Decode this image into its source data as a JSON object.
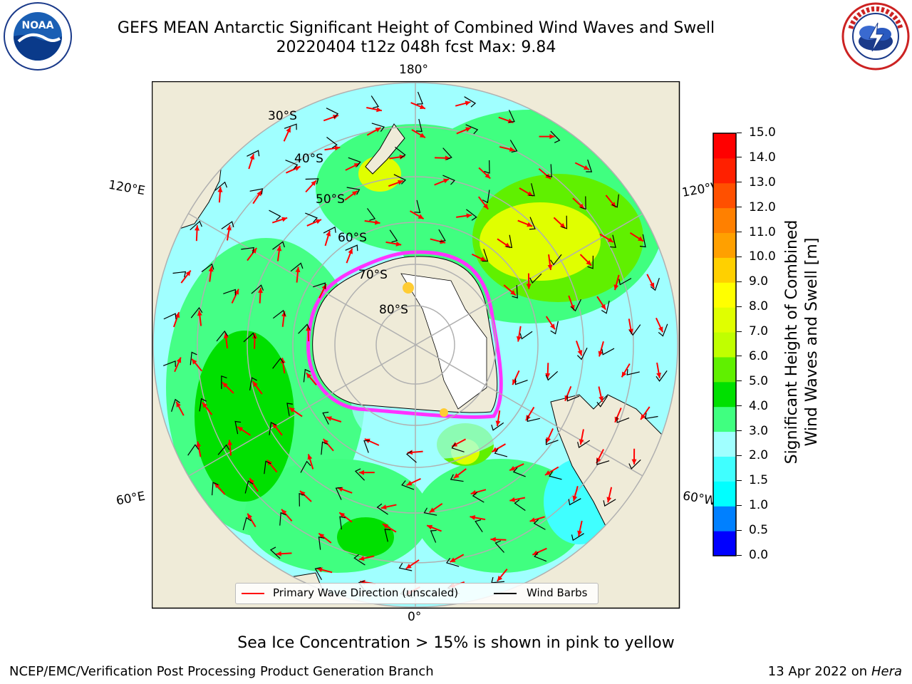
{
  "header": {
    "title_line1": "GEFS MEAN Antarctic Significant Height of Combined Wind Waves and Swell",
    "title_line2": "20220404 t12z 048h fcst   Max: 9.84"
  },
  "logos": {
    "left": {
      "name": "NOAA",
      "text": "NOAA",
      "ring_text": "NATIONAL OCEANIC AND ATMOSPHERIC ADMINISTRATION · U.S. DEPARTMENT OF COMMERCE"
    },
    "right": {
      "name": "National Weather Service",
      "ring_text": "NATIONAL WEATHER SERVICE"
    }
  },
  "map": {
    "projection": "south-polar-stereographic",
    "longitude_labels": {
      "top": "180°",
      "bottom": "0°",
      "left_upper": "120°E",
      "left_lower": "60°E",
      "right_upper": "120°W",
      "right_lower": "60°W"
    },
    "latitude_labels": [
      "30°S",
      "40°S",
      "50°S",
      "60°S",
      "70°S",
      "80°S"
    ],
    "colors": {
      "land": "#efebd8",
      "ice_edge": "#ff33ff",
      "ice_inner": "#ffcc33",
      "arrow": "#ff0000",
      "barb": "#000000",
      "graticule": "#b0b0b0"
    }
  },
  "legend": {
    "items": [
      {
        "label": "Primary Wave Direction (unscaled)",
        "color": "#ff0000"
      },
      {
        "label": "Wind Barbs",
        "color": "#000000"
      }
    ]
  },
  "colorbar": {
    "label": "Significant Height of Combined\nWind Waves and Swell [m]",
    "label_line1": "Significant Height of Combined",
    "label_line2": "Wind Waves and Swell [m]",
    "ticks": [
      "0.0",
      "0.5",
      "1.0",
      "1.5",
      "2.0",
      "3.0",
      "4.0",
      "5.0",
      "6.0",
      "7.0",
      "8.0",
      "9.0",
      "10.0",
      "11.0",
      "12.0",
      "13.0",
      "14.0",
      "15.0"
    ],
    "colors": [
      "#0000ff",
      "#0080ff",
      "#00ffff",
      "#40ffff",
      "#a0ffff",
      "#40ff80",
      "#00e000",
      "#60f000",
      "#c0ff00",
      "#e0ff00",
      "#ffff00",
      "#ffd000",
      "#ffa000",
      "#ff8000",
      "#ff5000",
      "#ff2000",
      "#ff0000"
    ]
  },
  "footer": {
    "note": "Sea Ice Concentration > 15% is shown in pink to yellow",
    "left": "NCEP/EMC/Verification Post Processing Product Generation Branch",
    "right_date": "13 Apr 2022 on ",
    "right_machine": "Hera"
  }
}
